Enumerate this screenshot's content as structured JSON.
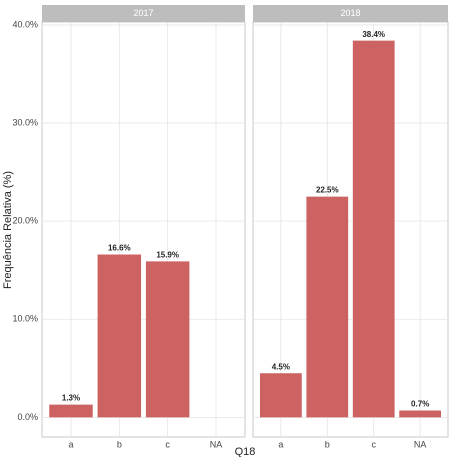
{
  "chart_data": [
    {
      "type": "bar",
      "title": "2017",
      "y_label": "Frequência Relativa (%)",
      "x_label": "Q18",
      "categories": [
        "a",
        "b",
        "c",
        "NA"
      ],
      "values": [
        1.3,
        16.6,
        15.9,
        null
      ],
      "value_labels": [
        "1.3%",
        "16.6%",
        "15.9%",
        null
      ],
      "color": "#cd6262",
      "ylim": [
        -2,
        40.3
      ],
      "grid": true,
      "yticks": [
        {
          "value": 0,
          "label": "0.0%"
        },
        {
          "value": 10,
          "label": "10.0%"
        },
        {
          "value": 20,
          "label": "20.0%"
        },
        {
          "value": 30,
          "label": "30.0%"
        },
        {
          "value": 40,
          "label": "40.0%"
        }
      ]
    },
    {
      "type": "bar",
      "title": "2018",
      "categories": [
        "a",
        "b",
        "c",
        "NA"
      ],
      "values": [
        4.5,
        22.5,
        38.4,
        0.7
      ],
      "value_labels": [
        "4.5%",
        "22.5%",
        "38.4%",
        "0.7%"
      ],
      "color": "#cd6262",
      "ylim": [
        -2,
        40.3
      ],
      "grid": true,
      "yticks": [
        {
          "value": 0,
          "label": "0.0%"
        },
        {
          "value": 10,
          "label": "10.0%"
        },
        {
          "value": 20,
          "label": "20.0%"
        },
        {
          "value": 30,
          "label": "30.0%"
        },
        {
          "value": 40,
          "label": "40.0%"
        }
      ]
    }
  ]
}
